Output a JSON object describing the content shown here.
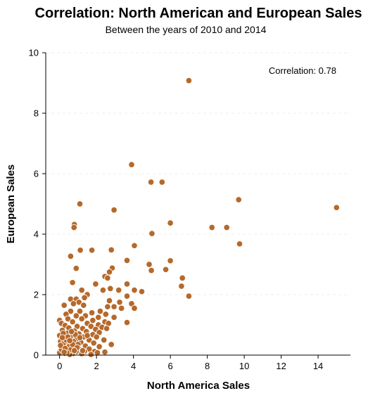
{
  "chart_data": {
    "type": "scatter",
    "title": "Correlation: North American and European Sales",
    "subtitle": "Between the years of 2010 and 2014",
    "xlabel": "North America Sales",
    "ylabel": "European Sales",
    "xlim": [
      -0.75,
      15.75
    ],
    "ylim": [
      0,
      10
    ],
    "xticks": [
      0,
      2,
      4,
      6,
      8,
      10,
      12,
      14
    ],
    "yticks": [
      0,
      2,
      4,
      6,
      8,
      10
    ],
    "grid": true,
    "annotation": "Correlation: 0.78",
    "annotation_position": "top-right",
    "marker_color": "#b5692b",
    "marker_edge": "#ffffff",
    "points": [
      [
        7.0,
        9.08
      ],
      [
        3.9,
        6.3
      ],
      [
        4.95,
        5.72
      ],
      [
        5.55,
        5.72
      ],
      [
        1.1,
        5.0
      ],
      [
        9.7,
        5.14
      ],
      [
        15.0,
        4.88
      ],
      [
        2.95,
        4.8
      ],
      [
        6.0,
        4.37
      ],
      [
        8.25,
        4.22
      ],
      [
        9.05,
        4.22
      ],
      [
        0.8,
        4.32
      ],
      [
        0.78,
        4.22
      ],
      [
        5.0,
        4.02
      ],
      [
        9.75,
        3.68
      ],
      [
        4.05,
        3.62
      ],
      [
        1.12,
        3.47
      ],
      [
        1.75,
        3.47
      ],
      [
        2.8,
        3.48
      ],
      [
        0.6,
        3.27
      ],
      [
        3.65,
        3.13
      ],
      [
        6.0,
        3.12
      ],
      [
        4.85,
        3.0
      ],
      [
        2.85,
        2.88
      ],
      [
        0.9,
        2.87
      ],
      [
        5.75,
        2.83
      ],
      [
        2.7,
        2.75
      ],
      [
        4.97,
        2.8
      ],
      [
        6.65,
        2.55
      ],
      [
        2.45,
        2.6
      ],
      [
        2.6,
        2.55
      ],
      [
        0.7,
        2.4
      ],
      [
        1.95,
        2.35
      ],
      [
        3.65,
        2.35
      ],
      [
        6.6,
        2.28
      ],
      [
        2.75,
        2.2
      ],
      [
        3.2,
        2.15
      ],
      [
        4.05,
        2.15
      ],
      [
        4.45,
        2.1
      ],
      [
        1.2,
        2.15
      ],
      [
        2.35,
        2.15
      ],
      [
        1.5,
        2.0
      ],
      [
        3.65,
        1.95
      ],
      [
        7.0,
        1.95
      ],
      [
        0.6,
        1.85
      ],
      [
        0.9,
        1.85
      ],
      [
        1.35,
        1.9
      ],
      [
        2.7,
        1.8
      ],
      [
        1.05,
        1.75
      ],
      [
        3.25,
        1.75
      ],
      [
        3.9,
        1.7
      ],
      [
        0.25,
        1.65
      ],
      [
        0.75,
        1.7
      ],
      [
        1.3,
        1.65
      ],
      [
        2.6,
        1.6
      ],
      [
        2.95,
        1.6
      ],
      [
        4.05,
        1.55
      ],
      [
        3.35,
        1.55
      ],
      [
        0.6,
        1.45
      ],
      [
        1.1,
        1.45
      ],
      [
        1.75,
        1.4
      ],
      [
        2.2,
        1.45
      ],
      [
        0.35,
        1.35
      ],
      [
        0.9,
        1.3
      ],
      [
        1.4,
        1.3
      ],
      [
        2.5,
        1.35
      ],
      [
        2.1,
        1.25
      ],
      [
        2.95,
        1.25
      ],
      [
        0.0,
        1.15
      ],
      [
        0.45,
        1.2
      ],
      [
        1.2,
        1.2
      ],
      [
        1.8,
        1.15
      ],
      [
        2.45,
        1.1
      ],
      [
        3.65,
        1.08
      ],
      [
        0.1,
        1.05
      ],
      [
        0.7,
        1.1
      ],
      [
        1.5,
        1.05
      ],
      [
        2.1,
        1.0
      ],
      [
        2.65,
        1.05
      ],
      [
        0.3,
        0.98
      ],
      [
        0.95,
        0.95
      ],
      [
        1.7,
        0.95
      ],
      [
        2.3,
        0.92
      ],
      [
        0.5,
        0.9
      ],
      [
        1.25,
        0.88
      ],
      [
        1.95,
        0.85
      ],
      [
        2.55,
        0.88
      ],
      [
        0.15,
        0.82
      ],
      [
        0.8,
        0.8
      ],
      [
        1.45,
        0.78
      ],
      [
        2.15,
        0.75
      ],
      [
        0.4,
        0.72
      ],
      [
        1.05,
        0.7
      ],
      [
        1.8,
        0.68
      ],
      [
        0.0,
        0.65
      ],
      [
        0.6,
        0.62
      ],
      [
        1.3,
        0.6
      ],
      [
        2.0,
        0.6
      ],
      [
        0.25,
        0.55
      ],
      [
        0.9,
        0.52
      ],
      [
        1.6,
        0.5
      ],
      [
        2.4,
        0.5
      ],
      [
        0.05,
        0.45
      ],
      [
        0.55,
        0.42
      ],
      [
        1.15,
        0.42
      ],
      [
        1.85,
        0.4
      ],
      [
        0.35,
        0.35
      ],
      [
        0.8,
        0.32
      ],
      [
        1.4,
        0.3
      ],
      [
        2.15,
        0.28
      ],
      [
        2.8,
        0.35
      ],
      [
        0.15,
        0.25
      ],
      [
        0.65,
        0.22
      ],
      [
        1.05,
        0.2
      ],
      [
        1.6,
        0.2
      ],
      [
        0.45,
        0.15
      ],
      [
        0.9,
        0.12
      ],
      [
        1.35,
        0.12
      ],
      [
        1.9,
        0.12
      ],
      [
        0.0,
        0.08
      ],
      [
        0.3,
        0.06
      ],
      [
        0.7,
        0.05
      ],
      [
        1.2,
        0.05
      ],
      [
        2.05,
        0.08
      ],
      [
        2.45,
        0.1
      ],
      [
        0.55,
        0.02
      ],
      [
        1.7,
        0.02
      ],
      [
        0.2,
        0.38
      ],
      [
        0.5,
        0.28
      ],
      [
        0.75,
        0.45
      ],
      [
        1.0,
        0.35
      ],
      [
        0.1,
        0.18
      ],
      [
        0.35,
        0.5
      ],
      [
        0.6,
        0.18
      ],
      [
        0.85,
        0.68
      ],
      [
        0.2,
        0.72
      ],
      [
        0.4,
        0.08
      ],
      [
        1.1,
        0.58
      ],
      [
        0.65,
        0.78
      ],
      [
        0.05,
        0.32
      ],
      [
        0.3,
        0.22
      ],
      [
        0.45,
        0.6
      ],
      [
        0.7,
        0.35
      ],
      [
        0.95,
        0.25
      ],
      [
        0.25,
        0.1
      ],
      [
        0.55,
        0.48
      ],
      [
        0.8,
        0.15
      ],
      [
        0.15,
        0.58
      ],
      [
        1.25,
        0.15
      ],
      [
        1.5,
        0.65
      ]
    ]
  }
}
